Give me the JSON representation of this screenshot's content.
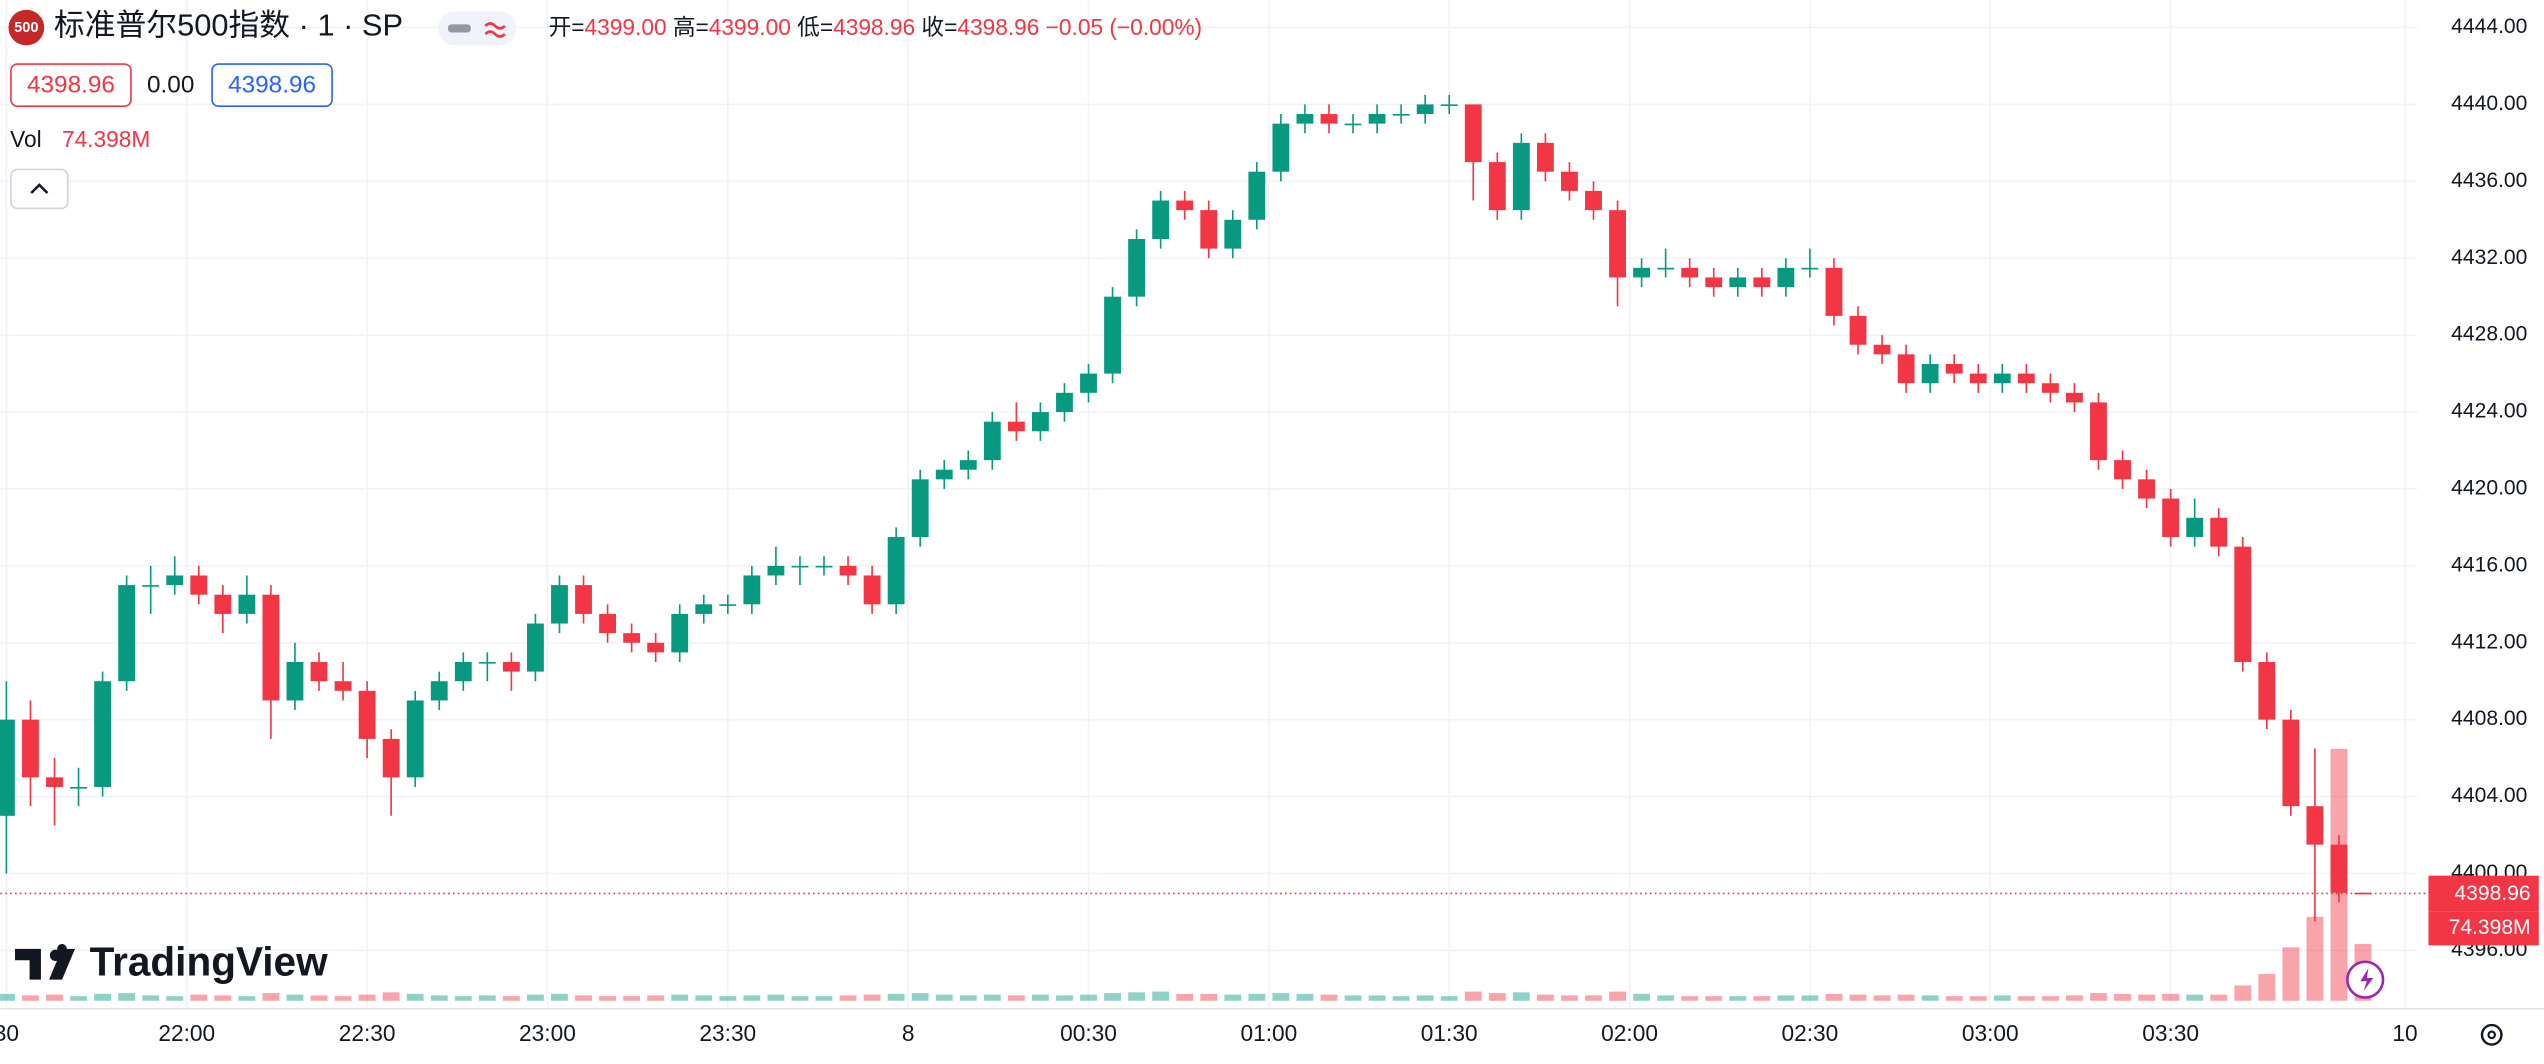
{
  "chart_data": {
    "type": "candlestick",
    "header": {
      "symbol_badge": "500",
      "title": "标准普尔500指数 · 1 · SP",
      "open_label": "开=",
      "open": "4399.00",
      "high_label": "高=",
      "high": "4399.00",
      "low_label": "低=",
      "low": "4398.96",
      "close_label": "收=",
      "close": "4398.96",
      "change": "−0.05 (−0.00%)",
      "sell_price": "4398.96",
      "spread": "0.00",
      "buy_price": "4398.96",
      "volume_label": "Vol",
      "volume_value": "74.398M"
    },
    "brand": "TradingView",
    "last_price_label": "4398.96",
    "last_volume_label": "74.398M",
    "up_color": "#089981",
    "down_color": "#f23645",
    "grid": true,
    "x": [
      0,
      4,
      8,
      12,
      16,
      20,
      24,
      28,
      32,
      36,
      40,
      44,
      48,
      52,
      56,
      60,
      64,
      68,
      72,
      76,
      80,
      84,
      88,
      92,
      96,
      100,
      104,
      108,
      112,
      116,
      120,
      124,
      128,
      132,
      136,
      140,
      144,
      148,
      152,
      156,
      160,
      164,
      168,
      172,
      176,
      180,
      184,
      188,
      192,
      196,
      200,
      204,
      208,
      212,
      216,
      220,
      224,
      228,
      232,
      236,
      240,
      244,
      248,
      252,
      256,
      260,
      264,
      268,
      272,
      276,
      280,
      284,
      288,
      292,
      296,
      300,
      304,
      308,
      312,
      316,
      320,
      324,
      328,
      332,
      336,
      340,
      344,
      348,
      352,
      356,
      360,
      364,
      368,
      372,
      376,
      380,
      384,
      388,
      392
    ],
    "ohlc": [
      [
        4403,
        4410,
        4400,
        4408
      ],
      [
        4408,
        4409,
        4403.5,
        4405
      ],
      [
        4405,
        4406,
        4402.5,
        4404.5
      ],
      [
        4404.5,
        4405.5,
        4403.5,
        4404.5
      ],
      [
        4404.5,
        4410.5,
        4404,
        4410
      ],
      [
        4410,
        4415.5,
        4409.5,
        4415
      ],
      [
        4415,
        4416,
        4413.5,
        4415
      ],
      [
        4415,
        4416.5,
        4414.5,
        4415.5
      ],
      [
        4415.5,
        4416,
        4414,
        4414.5
      ],
      [
        4414.5,
        4415,
        4412.5,
        4413.5
      ],
      [
        4413.5,
        4415.5,
        4413,
        4414.5
      ],
      [
        4414.5,
        4415,
        4407,
        4409
      ],
      [
        4409,
        4412,
        4408.5,
        4411
      ],
      [
        4411,
        4411.5,
        4409.5,
        4410
      ],
      [
        4410,
        4411,
        4409,
        4409.5
      ],
      [
        4409.5,
        4410,
        4406,
        4407
      ],
      [
        4407,
        4407.5,
        4403,
        4405
      ],
      [
        4405,
        4409.5,
        4404.5,
        4409
      ],
      [
        4409,
        4410.5,
        4408.5,
        4410
      ],
      [
        4410,
        4411.5,
        4409.5,
        4411
      ],
      [
        4411,
        4411.5,
        4410,
        4411
      ],
      [
        4411,
        4411.5,
        4409.5,
        4410.5
      ],
      [
        4410.5,
        4413.5,
        4410,
        4413
      ],
      [
        4413,
        4415.5,
        4412.5,
        4415
      ],
      [
        4415,
        4415.5,
        4413,
        4413.5
      ],
      [
        4413.5,
        4414,
        4412,
        4412.5
      ],
      [
        4412.5,
        4413,
        4411.5,
        4412
      ],
      [
        4412,
        4412.5,
        4411,
        4411.5
      ],
      [
        4411.5,
        4414,
        4411,
        4413.5
      ],
      [
        4413.5,
        4414.5,
        4413,
        4414
      ],
      [
        4414,
        4414.5,
        4413.5,
        4414
      ],
      [
        4414,
        4416,
        4413.5,
        4415.5
      ],
      [
        4415.5,
        4417,
        4415,
        4416
      ],
      [
        4416,
        4416.5,
        4415,
        4416
      ],
      [
        4416,
        4416.5,
        4415.5,
        4416
      ],
      [
        4416,
        4416.5,
        4415,
        4415.5
      ],
      [
        4415.5,
        4416,
        4413.5,
        4414
      ],
      [
        4414,
        4418,
        4413.5,
        4417.5
      ],
      [
        4417.5,
        4421,
        4417,
        4420.5
      ],
      [
        4420.5,
        4421.5,
        4420,
        4421
      ],
      [
        4421,
        4422,
        4420.5,
        4421.5
      ],
      [
        4421.5,
        4424,
        4421,
        4423.5
      ],
      [
        4423.5,
        4424.5,
        4422.5,
        4423
      ],
      [
        4423,
        4424.5,
        4422.5,
        4424
      ],
      [
        4424,
        4425.5,
        4423.5,
        4425
      ],
      [
        4425,
        4426.5,
        4424.5,
        4426
      ],
      [
        4426,
        4430.5,
        4425.5,
        4430
      ],
      [
        4430,
        4433.5,
        4429.5,
        4433
      ],
      [
        4433,
        4435.5,
        4432.5,
        4435
      ],
      [
        4435,
        4435.5,
        4434,
        4434.5
      ],
      [
        4434.5,
        4435,
        4432,
        4432.5
      ],
      [
        4432.5,
        4434.5,
        4432,
        4434
      ],
      [
        4434,
        4437,
        4433.5,
        4436.5
      ],
      [
        4436.5,
        4439.5,
        4436,
        4439
      ],
      [
        4439,
        4440,
        4438.5,
        4439.5
      ],
      [
        4439.5,
        4440,
        4438.5,
        4439
      ],
      [
        4439,
        4439.5,
        4438.5,
        4439
      ],
      [
        4439,
        4440,
        4438.5,
        4439.5
      ],
      [
        4439.5,
        4440,
        4439,
        4439.5
      ],
      [
        4439.5,
        4440.5,
        4439,
        4440
      ],
      [
        4440,
        4440.5,
        4439.5,
        4440
      ],
      [
        4440,
        4440,
        4435,
        4437
      ],
      [
        4437,
        4437.5,
        4434,
        4434.5
      ],
      [
        4434.5,
        4438.5,
        4434,
        4438
      ],
      [
        4438,
        4438.5,
        4436,
        4436.5
      ],
      [
        4436.5,
        4437,
        4435,
        4435.5
      ],
      [
        4435.5,
        4436,
        4434,
        4434.5
      ],
      [
        4434.5,
        4435,
        4429.5,
        4431
      ],
      [
        4431,
        4432,
        4430.5,
        4431.5
      ],
      [
        4431.5,
        4432.5,
        4431,
        4431.5
      ],
      [
        4431.5,
        4432,
        4430.5,
        4431
      ],
      [
        4431,
        4431.5,
        4430,
        4430.5
      ],
      [
        4430.5,
        4431.5,
        4430,
        4431
      ],
      [
        4431,
        4431.5,
        4430,
        4430.5
      ],
      [
        4430.5,
        4432,
        4430,
        4431.5
      ],
      [
        4431.5,
        4432.5,
        4431,
        4431.5
      ],
      [
        4431.5,
        4432,
        4428.5,
        4429
      ],
      [
        4429,
        4429.5,
        4427,
        4427.5
      ],
      [
        4427.5,
        4428,
        4426.5,
        4427
      ],
      [
        4427,
        4427.5,
        4425,
        4425.5
      ],
      [
        4425.5,
        4427,
        4425,
        4426.5
      ],
      [
        4426.5,
        4427,
        4425.5,
        4426
      ],
      [
        4426,
        4426.5,
        4425,
        4425.5
      ],
      [
        4425.5,
        4426.5,
        4425,
        4426
      ],
      [
        4426,
        4426.5,
        4425,
        4425.5
      ],
      [
        4425.5,
        4426,
        4424.5,
        4425
      ],
      [
        4425,
        4425.5,
        4424,
        4424.5
      ],
      [
        4424.5,
        4425,
        4421,
        4421.5
      ],
      [
        4421.5,
        4422,
        4420,
        4420.5
      ],
      [
        4420.5,
        4421,
        4419,
        4419.5
      ],
      [
        4419.5,
        4420,
        4417,
        4417.5
      ],
      [
        4417.5,
        4419.5,
        4417,
        4418.5
      ],
      [
        4418.5,
        4419,
        4416.5,
        4417
      ],
      [
        4417,
        4417.5,
        4410.5,
        4411
      ],
      [
        4411,
        4411.5,
        4407.5,
        4408
      ],
      [
        4408,
        4408.5,
        4403,
        4403.5
      ],
      [
        4403.5,
        4406.5,
        4397.5,
        4401.5
      ],
      [
        4401.5,
        4402,
        4398.5,
        4399
      ],
      [
        4399,
        4399,
        4398.96,
        4398.96
      ]
    ],
    "volume": [
      9,
      7,
      8,
      6,
      9,
      10,
      7,
      6,
      8,
      7,
      6,
      10,
      8,
      7,
      6,
      8,
      11,
      9,
      7,
      6,
      7,
      6,
      8,
      9,
      7,
      6,
      6,
      7,
      8,
      7,
      6,
      7,
      8,
      6,
      6,
      7,
      8,
      9,
      10,
      8,
      7,
      8,
      7,
      8,
      7,
      8,
      10,
      11,
      12,
      9,
      9,
      8,
      9,
      10,
      9,
      8,
      7,
      7,
      6,
      7,
      6,
      12,
      10,
      11,
      8,
      7,
      7,
      12,
      9,
      7,
      6,
      6,
      6,
      6,
      7,
      7,
      9,
      8,
      7,
      8,
      7,
      6,
      6,
      7,
      6,
      6,
      7,
      10,
      9,
      8,
      9,
      8,
      8,
      20,
      35,
      70,
      110,
      330,
      74.398
    ],
    "vlim": [
      0,
      425
    ],
    "xlim": [
      -1,
      401
    ],
    "xticks": [
      {
        "value": 0,
        "label": "30"
      },
      {
        "value": 30,
        "label": "22:00"
      },
      {
        "value": 60,
        "label": "22:30"
      },
      {
        "value": 90,
        "label": "23:00"
      },
      {
        "value": 120,
        "label": "23:30"
      },
      {
        "value": 150,
        "label": "8"
      },
      {
        "value": 180,
        "label": "00:30"
      },
      {
        "value": 210,
        "label": "01:00"
      },
      {
        "value": 240,
        "label": "01:30"
      },
      {
        "value": 270,
        "label": "02:00"
      },
      {
        "value": 300,
        "label": "02:30"
      },
      {
        "value": 330,
        "label": "03:00"
      },
      {
        "value": 360,
        "label": "03:30"
      },
      {
        "value": 399,
        "label": "10"
      }
    ],
    "ylim": [
      4392.96,
      4445.43
    ],
    "yticks": [
      {
        "value": 4396,
        "label": "4396.00"
      },
      {
        "value": 4400,
        "label": "4400.00"
      },
      {
        "value": 4404,
        "label": "4404.00"
      },
      {
        "value": 4408,
        "label": "4408.00"
      },
      {
        "value": 4412,
        "label": "4412.00"
      },
      {
        "value": 4416,
        "label": "4416.00"
      },
      {
        "value": 4420,
        "label": "4420.00"
      },
      {
        "value": 4424,
        "label": "4424.00"
      },
      {
        "value": 4428,
        "label": "4428.00"
      },
      {
        "value": 4432,
        "label": "4432.00"
      },
      {
        "value": 4436,
        "label": "4436.00"
      },
      {
        "value": 4440,
        "label": "4440.00"
      },
      {
        "value": 4444,
        "label": "4444.00"
      }
    ]
  }
}
